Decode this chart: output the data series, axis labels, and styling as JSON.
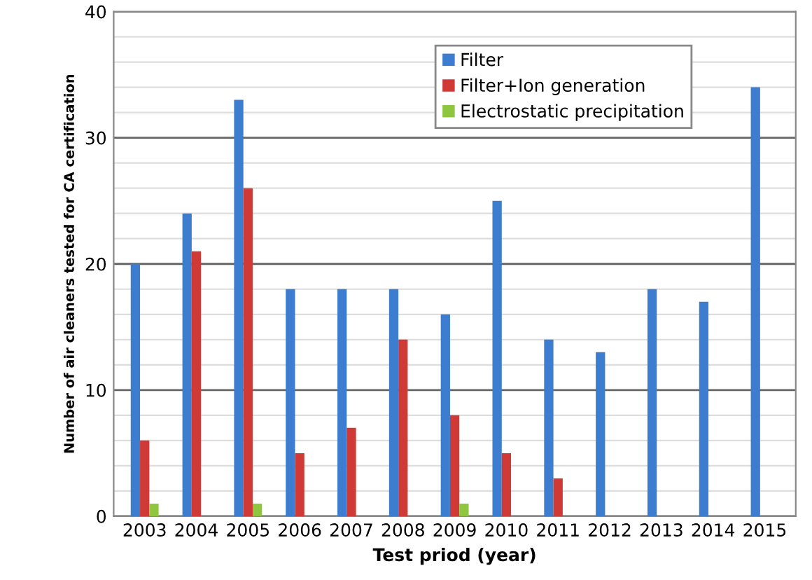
{
  "chart_data": {
    "type": "bar",
    "xlabel": "Test priod (year)",
    "ylabel": "Number of air cleaners tested for CA certification",
    "categories": [
      "2003",
      "2004",
      "2005",
      "2006",
      "2007",
      "2008",
      "2009",
      "2010",
      "2011",
      "2012",
      "2013",
      "2014",
      "2015"
    ],
    "series": [
      {
        "name": "Filter",
        "color": "#3c7dd0",
        "values": [
          20,
          24,
          33,
          18,
          18,
          18,
          16,
          25,
          14,
          13,
          18,
          17,
          34
        ]
      },
      {
        "name": "Filter+Ion generation",
        "color": "#d03a36",
        "values": [
          6,
          21,
          26,
          5,
          7,
          14,
          8,
          5,
          3,
          null,
          null,
          null,
          null
        ]
      },
      {
        "name": "Electrostatic precipitation",
        "color": "#8ec63f",
        "values": [
          1,
          null,
          1,
          null,
          null,
          null,
          1,
          null,
          null,
          null,
          null,
          null,
          null
        ]
      }
    ],
    "ylim": [
      0,
      40
    ],
    "yticks": [
      0,
      {
        "value": 2,
        "label": null
      },
      {
        "value": 4,
        "label": null
      },
      {
        "value": 6,
        "label": null
      },
      {
        "value": 8,
        "label": null
      },
      10,
      {
        "value": 12,
        "label": null
      },
      {
        "value": 14,
        "label": null
      },
      {
        "value": 16,
        "label": null
      },
      {
        "value": 18,
        "label": null
      },
      20,
      {
        "value": 22,
        "label": null
      },
      {
        "value": 24,
        "label": null
      },
      {
        "value": 26,
        "label": null
      },
      {
        "value": 28,
        "label": null
      },
      30,
      {
        "value": 32,
        "label": null
      },
      {
        "value": 34,
        "label": null
      },
      {
        "value": 36,
        "label": null
      },
      {
        "value": 38,
        "label": null
      },
      40
    ],
    "grid": "y",
    "legend": "top right"
  }
}
